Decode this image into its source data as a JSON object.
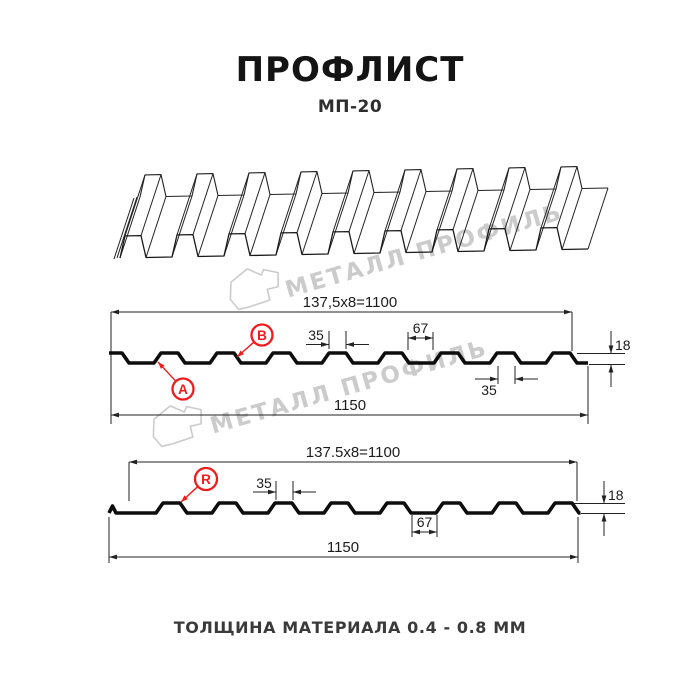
{
  "header": {
    "title": "ПРОФЛИСТ",
    "subtitle": "МП-20"
  },
  "footer": {
    "note": "ТОЛЩИНА МАТЕРИАЛА 0.4 - 0.8 ММ"
  },
  "watermark": {
    "text": "МЕТАЛЛ ПРОФИЛЬ",
    "color": "#c9c9c9"
  },
  "colors": {
    "accent_red": "#ee1c1c",
    "line": "#222222",
    "profile": "#0d0d0d",
    "watermark": "#c9c9c9"
  },
  "perspective_view": {
    "name": "3d-sheet-view",
    "rib_count": 9
  },
  "section_a": {
    "name": "side-a-cross-section",
    "width_total_label": "137,5x8=1100",
    "overall_label": "1150",
    "crest_label": "35",
    "valley_label": "67",
    "height_label": "18",
    "crest_bottom_label": "35",
    "point_labels": [
      {
        "id": "A"
      },
      {
        "id": "B"
      }
    ]
  },
  "section_r": {
    "name": "side-r-cross-section",
    "width_total_label": "137.5x8=1100",
    "overall_label": "1150",
    "crest_label": "35",
    "valley_label": "67",
    "height_label": "18",
    "point_labels": [
      {
        "id": "R"
      }
    ]
  }
}
